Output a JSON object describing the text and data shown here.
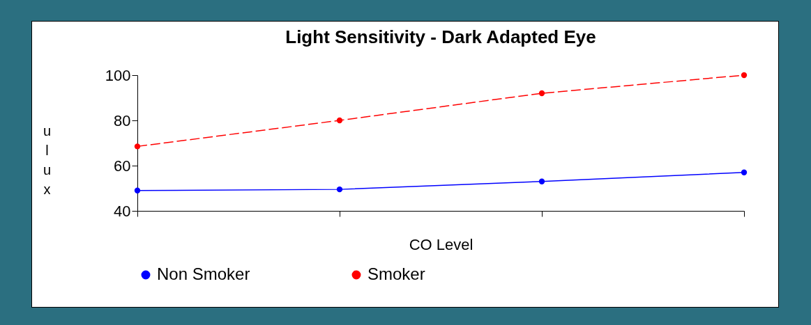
{
  "chart_data": {
    "type": "line",
    "title": "Light Sensitivity - Dark Adapted Eye",
    "xlabel": "CO Level",
    "ylabel": "ulux",
    "categories": [
      null,
      null,
      null,
      null
    ],
    "series": [
      {
        "name": "Non Smoker",
        "color": "#0000ff",
        "values": [
          49,
          49.5,
          53,
          57
        ],
        "line_style": "solid"
      },
      {
        "name": "Smoker",
        "color": "#ff0000",
        "values": [
          68.5,
          80,
          92,
          100
        ],
        "line_style": "dashed"
      }
    ],
    "ylim": [
      40,
      100
    ],
    "yticks": [
      40,
      60,
      80,
      100
    ],
    "tick_labels": "y",
    "grid": false,
    "legend": "bottom",
    "marker": "circle"
  }
}
